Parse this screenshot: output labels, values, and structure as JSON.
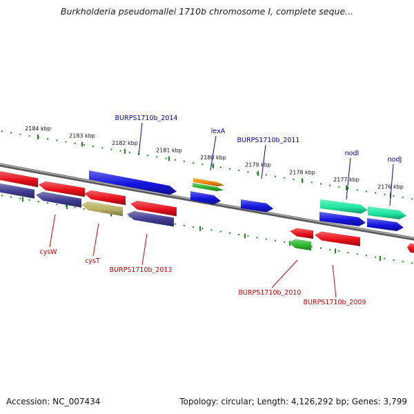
{
  "title": "Burkholderia pseudomallei 1710b chromosome I, complete seque...",
  "footer": {
    "accession": "Accession: NC_007434",
    "topology": "Topology: circular; Length: 4,126,292 bp; Genes: 3,799"
  },
  "colors": {
    "backbone": "#808080",
    "ruler_dot": "#1a8a1a",
    "label_blue": "#0000aa",
    "label_red": "#cc0000",
    "red_feature": "#e8101a",
    "blue_feature": "#1515e0",
    "purple_feature": "#3f3a90",
    "khaki_feature": "#b8b060",
    "green_feature": "#2eb82e",
    "orange_feature": "#f08a00",
    "mint_feature": "#1ee8a0"
  },
  "kbp_ticks": [
    "2184 kbp",
    "2183 kbp",
    "2182 kbp",
    "2181 kbp",
    "2180 kbp",
    "2179 kbp",
    "2178 kbp",
    "2177 kbp",
    "2176 kbp"
  ],
  "gene_labels": [
    {
      "text": "BURPS1710b_2014",
      "strand": "forward",
      "color": "label_blue"
    },
    {
      "text": "lexA",
      "strand": "forward",
      "color": "label_blue"
    },
    {
      "text": "BURPS1710b_2011",
      "strand": "forward",
      "color": "label_blue"
    },
    {
      "text": "nodI",
      "strand": "forward",
      "color": "label_blue"
    },
    {
      "text": "nodJ",
      "strand": "forward",
      "color": "label_blue"
    },
    {
      "text": "cysW",
      "strand": "reverse",
      "color": "label_red"
    },
    {
      "text": "cysT",
      "strand": "reverse",
      "color": "label_red"
    },
    {
      "text": "BURPS1710b_2013",
      "strand": "reverse",
      "color": "label_red"
    },
    {
      "text": "BURPS1710b_2010",
      "strand": "reverse",
      "color": "label_red"
    },
    {
      "text": "BURPS1710b_2009",
      "strand": "reverse",
      "color": "label_red"
    }
  ],
  "features": [
    {
      "color": "red_feature",
      "strand": "reverse"
    },
    {
      "color": "red_feature",
      "strand": "reverse"
    },
    {
      "color": "red_feature",
      "strand": "reverse"
    },
    {
      "color": "red_feature",
      "strand": "reverse"
    },
    {
      "color": "purple_feature",
      "strand": "reverse"
    },
    {
      "color": "purple_feature",
      "strand": "reverse"
    },
    {
      "color": "khaki_feature",
      "strand": "reverse"
    },
    {
      "color": "purple_feature",
      "strand": "reverse"
    },
    {
      "color": "blue_feature",
      "strand": "forward"
    },
    {
      "color": "orange_feature",
      "strand": "forward"
    },
    {
      "color": "green_feature",
      "strand": "forward"
    },
    {
      "color": "blue_feature",
      "strand": "forward"
    },
    {
      "color": "blue_feature",
      "strand": "forward"
    },
    {
      "color": "mint_feature",
      "strand": "forward"
    },
    {
      "color": "mint_feature",
      "strand": "forward"
    },
    {
      "color": "blue_feature",
      "strand": "forward"
    },
    {
      "color": "blue_feature",
      "strand": "forward"
    },
    {
      "color": "red_feature",
      "strand": "reverse"
    },
    {
      "color": "green_feature",
      "strand": "reverse"
    },
    {
      "color": "red_feature",
      "strand": "reverse"
    },
    {
      "color": "red_feature",
      "strand": "reverse"
    }
  ]
}
